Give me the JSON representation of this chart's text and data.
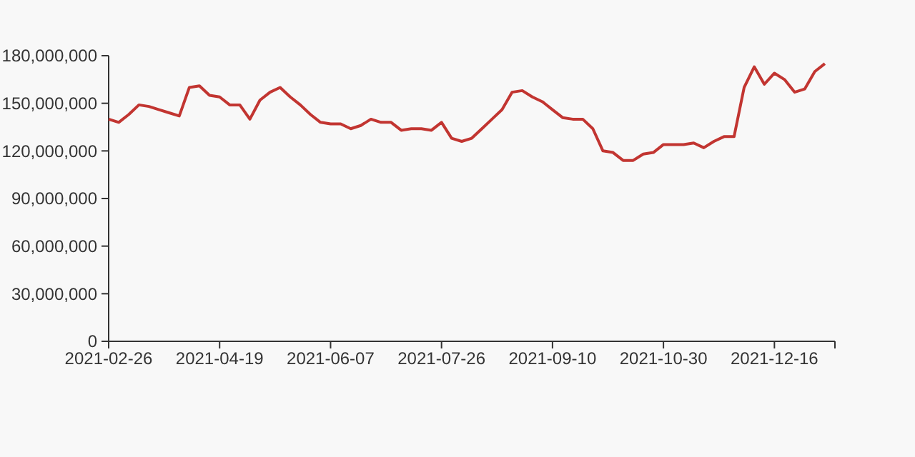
{
  "chart_data": {
    "type": "line",
    "categories": [
      "2021-02-26",
      null,
      null,
      null,
      null,
      null,
      null,
      null,
      null,
      null,
      null,
      "2021-04-19",
      null,
      null,
      null,
      null,
      null,
      null,
      null,
      null,
      null,
      null,
      "2021-06-07",
      null,
      null,
      null,
      null,
      null,
      null,
      null,
      null,
      null,
      null,
      "2021-07-26",
      null,
      null,
      null,
      null,
      null,
      null,
      null,
      null,
      null,
      null,
      "2021-09-10",
      null,
      null,
      null,
      null,
      null,
      null,
      null,
      null,
      null,
      null,
      "2021-10-30",
      null,
      null,
      null,
      null,
      null,
      null,
      null,
      null,
      null,
      null,
      "2021-12-16",
      null,
      null,
      null,
      null,
      null
    ],
    "series": [
      {
        "color": "#c23531",
        "values": [
          140000000,
          138000000,
          143000000,
          149000000,
          148000000,
          146000000,
          144000000,
          142000000,
          160000000,
          161000000,
          155000000,
          154000000,
          149000000,
          149000000,
          140000000,
          152000000,
          157000000,
          160000000,
          154000000,
          149000000,
          143000000,
          138000000,
          137000000,
          137000000,
          134000000,
          136000000,
          140000000,
          138000000,
          138000000,
          133000000,
          134000000,
          134000000,
          133000000,
          138000000,
          128000000,
          126000000,
          128000000,
          134000000,
          140000000,
          146000000,
          157000000,
          158000000,
          154000000,
          151000000,
          146000000,
          141000000,
          140000000,
          140000000,
          134000000,
          120000000,
          119000000,
          114000000,
          114000000,
          118000000,
          119000000,
          124000000,
          124000000,
          124000000,
          125000000,
          122000000,
          126000000,
          129000000,
          129000000,
          160000000,
          173000000,
          162000000,
          169000000,
          165000000,
          157000000,
          159000000,
          170000000,
          175000000
        ]
      }
    ],
    "ylim": [
      0,
      180000000
    ],
    "yticks": [
      {
        "value": 0,
        "label": "0"
      },
      {
        "value": 30000000,
        "label": "30,000,000"
      },
      {
        "value": 60000000,
        "label": "60,000,000"
      },
      {
        "value": 90000000,
        "label": "90,000,000"
      },
      {
        "value": 120000000,
        "label": "120,000,000"
      },
      {
        "value": 150000000,
        "label": "150,000,000"
      },
      {
        "value": 180000000,
        "label": "180,000,000"
      }
    ],
    "grid": false,
    "marker": "none",
    "line_style": "solid"
  }
}
